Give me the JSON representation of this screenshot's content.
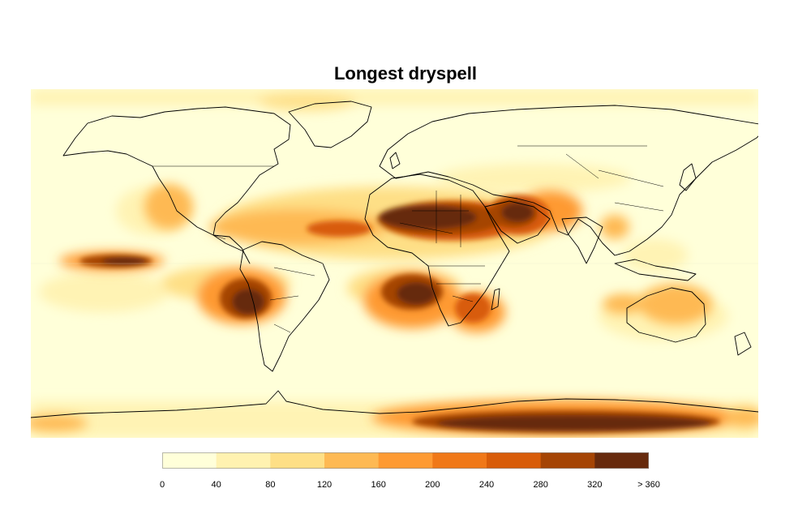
{
  "title": "Longest dryspell",
  "legend": {
    "colors": [
      "#ffffd9",
      "#fff2b0",
      "#fedf86",
      "#feb953",
      "#fe9a33",
      "#f07818",
      "#d85c09",
      "#a54404",
      "#66290c"
    ],
    "tick_labels": [
      "0",
      "40",
      "80",
      "120",
      "160",
      "200",
      "240",
      "280",
      "320",
      "> 360"
    ]
  },
  "map": {
    "ocean_base_color": "#ffffd9",
    "land_base_color": "#fffed6",
    "outline_color": "#000000"
  },
  "chart_data": {
    "type": "heatmap",
    "title": "Longest dryspell",
    "value_range": [
      0,
      360
    ],
    "bin_edges": [
      0,
      40,
      80,
      120,
      160,
      200,
      240,
      280,
      320,
      360
    ],
    "bins": [
      "0",
      "40",
      "80",
      "120",
      "160",
      "200",
      "240",
      "280",
      "320",
      "> 360"
    ],
    "regions": [
      {
        "lon": [
          -17,
          33
        ],
        "lat": [
          15,
          30
        ],
        "value": 365
      },
      {
        "lon": [
          36,
          55
        ],
        "lat": [
          17,
          28
        ],
        "value": 340
      },
      {
        "lon": [
          -10,
          60
        ],
        "lat": [
          10,
          35
        ],
        "value": 250
      },
      {
        "lon": [
          20,
          170
        ],
        "lat": [
          -80,
          -72
        ],
        "value": 345
      },
      {
        "lon": [
          -80,
          -68
        ],
        "lat": [
          -30,
          -15
        ],
        "value": 330
      },
      {
        "lon": [
          -15,
          12
        ],
        "lat": [
          -30,
          -15
        ],
        "value": 320
      },
      {
        "lon": [
          -160,
          -125
        ],
        "lat": [
          8,
          12
        ],
        "value": 300
      },
      {
        "lon": [
          10,
          35
        ],
        "lat": [
          -30,
          -15
        ],
        "value": 200
      },
      {
        "lon": [
          -60,
          10
        ],
        "lat": [
          12,
          25
        ],
        "value": 200
      },
      {
        "lon": [
          -122,
          -105
        ],
        "lat": [
          23,
          35
        ],
        "value": 160
      },
      {
        "lon": [
          60,
          75
        ],
        "lat": [
          25,
          35
        ],
        "value": 160
      },
      {
        "lon": [
          95,
          110
        ],
        "lat": [
          10,
          20
        ],
        "value": 140
      },
      {
        "lon": [
          115,
          150
        ],
        "lat": [
          -35,
          -18
        ],
        "value": 140
      },
      {
        "lon": [
          -40,
          -10
        ],
        "lat": [
          60,
          80
        ],
        "value": 100
      },
      {
        "lon": [
          -180,
          180
        ],
        "lat": [
          -80,
          -60
        ],
        "value": 90
      }
    ]
  }
}
